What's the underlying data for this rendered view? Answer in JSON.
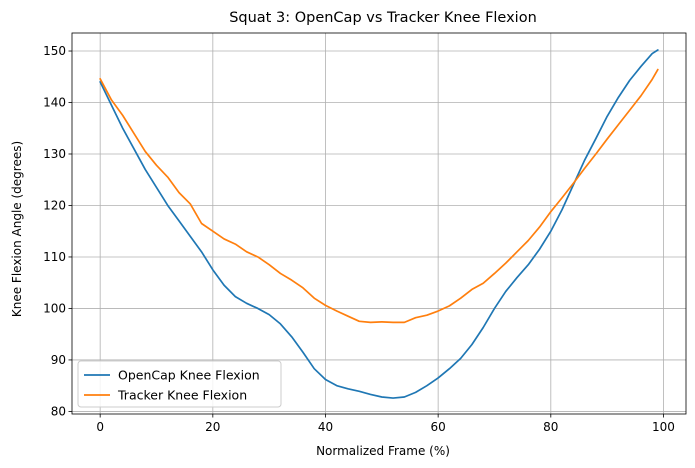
{
  "chart_data": {
    "type": "line",
    "title": "Squat 3: OpenCap vs Tracker Knee Flexion",
    "xlabel": "Normalized Frame (%)",
    "ylabel": "Knee Flexion Angle (degrees)",
    "xlim": [
      -5,
      104
    ],
    "ylim": [
      79.5,
      153.5
    ],
    "xticks": [
      0,
      20,
      40,
      60,
      80,
      100
    ],
    "yticks": [
      80,
      90,
      100,
      110,
      120,
      130,
      140,
      150
    ],
    "grid": true,
    "legend_position": "lower-left",
    "colors": {
      "opencap": "#1f77b4",
      "tracker": "#ff7f0e"
    },
    "series": [
      {
        "name": "OpenCap Knee Flexion",
        "color": "#1f77b4",
        "x": [
          0,
          2,
          4,
          6,
          8,
          10,
          12,
          14,
          16,
          18,
          20,
          22,
          24,
          26,
          28,
          30,
          32,
          34,
          36,
          38,
          40,
          42,
          44,
          46,
          48,
          50,
          52,
          54,
          56,
          58,
          60,
          62,
          64,
          66,
          68,
          70,
          72,
          74,
          76,
          78,
          80,
          82,
          84,
          86,
          88,
          90,
          92,
          94,
          96,
          98,
          99
        ],
        "values": [
          144.0,
          139.5,
          135.0,
          131.0,
          127.0,
          123.5,
          120.0,
          117.0,
          114.0,
          111.0,
          107.5,
          104.5,
          102.3,
          101.0,
          100.0,
          98.8,
          97.0,
          94.5,
          91.5,
          88.3,
          86.2,
          85.0,
          84.4,
          83.9,
          83.3,
          82.8,
          82.6,
          82.8,
          83.7,
          85.0,
          86.5,
          88.3,
          90.3,
          93.0,
          96.3,
          100.0,
          103.3,
          106.0,
          108.5,
          111.5,
          115.0,
          119.2,
          124.0,
          128.8,
          133.0,
          137.3,
          141.0,
          144.3,
          147.0,
          149.5,
          150.2
        ]
      },
      {
        "name": "Tracker Knee Flexion",
        "color": "#ff7f0e",
        "x": [
          0,
          2,
          4,
          6,
          8,
          10,
          12,
          14,
          16,
          18,
          20,
          22,
          24,
          26,
          28,
          30,
          32,
          34,
          36,
          38,
          40,
          42,
          44,
          46,
          48,
          50,
          52,
          54,
          56,
          58,
          60,
          62,
          64,
          66,
          68,
          70,
          72,
          74,
          76,
          78,
          80,
          82,
          84,
          86,
          88,
          90,
          92,
          94,
          96,
          98,
          99
        ],
        "values": [
          144.6,
          140.5,
          137.5,
          134.0,
          130.5,
          127.8,
          125.5,
          122.5,
          120.3,
          116.5,
          115.0,
          113.5,
          112.5,
          111.0,
          110.0,
          108.5,
          106.8,
          105.5,
          104.0,
          102.0,
          100.6,
          99.5,
          98.5,
          97.5,
          97.3,
          97.4,
          97.3,
          97.3,
          98.2,
          98.7,
          99.5,
          100.5,
          102.0,
          103.7,
          104.9,
          106.8,
          108.8,
          111.0,
          113.2,
          115.8,
          118.8,
          121.5,
          124.3,
          127.2,
          130.0,
          132.9,
          135.7,
          138.5,
          141.3,
          144.5,
          146.4
        ]
      }
    ]
  }
}
